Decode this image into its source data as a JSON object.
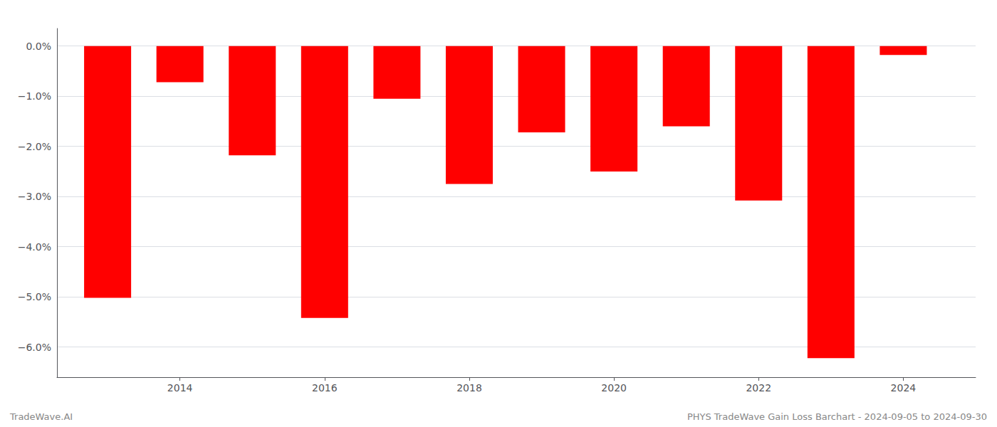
{
  "chart_data": {
    "type": "bar",
    "x": [
      2013,
      2014,
      2015,
      2016,
      2017,
      2018,
      2019,
      2020,
      2021,
      2022,
      2023,
      2024
    ],
    "values": [
      -5.02,
      -0.72,
      -2.18,
      -5.42,
      -1.05,
      -2.75,
      -1.72,
      -2.5,
      -1.6,
      -3.08,
      -6.22,
      -0.18
    ],
    "color": "#ff0000",
    "xlim": [
      2012.3,
      2025.0
    ],
    "xticks": [
      2014,
      2016,
      2018,
      2020,
      2022,
      2024
    ],
    "ylim": [
      -6.6,
      0.35
    ],
    "yticks": [
      {
        "value": 0.0,
        "label": "0.0%"
      },
      {
        "value": -1.0,
        "label": "−1.0%"
      },
      {
        "value": -2.0,
        "label": "−2.0%"
      },
      {
        "value": -3.0,
        "label": "−3.0%"
      },
      {
        "value": -4.0,
        "label": "−4.0%"
      },
      {
        "value": -5.0,
        "label": "−5.0%"
      },
      {
        "value": -6.0,
        "label": "−6.0%"
      }
    ],
    "grid": true,
    "annotations": [
      "TradeWave.AI",
      "PHYS TradeWave Gain Loss Barchart - 2024-09-05 to 2024-09-30"
    ]
  }
}
